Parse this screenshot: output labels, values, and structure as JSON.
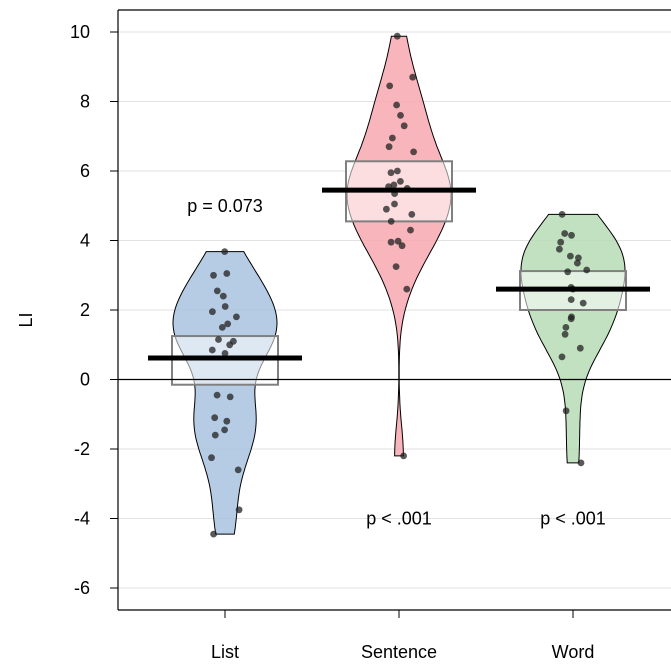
{
  "chart_data": {
    "type": "pirateplot",
    "title": "",
    "xlabel": "",
    "ylabel": "LI",
    "ylim": [
      -6.6,
      10.6
    ],
    "yticks": [
      -6,
      -4,
      -2,
      0,
      2,
      4,
      6,
      8,
      10
    ],
    "ytick_labels": [
      "-6",
      "-4",
      "-2",
      "0",
      "2",
      "4",
      "6",
      "8",
      "10"
    ],
    "reference_line": 0,
    "grid": "horizontal",
    "categories": [
      "List",
      "Sentence",
      "Word"
    ],
    "series": [
      {
        "category": "List",
        "color": "#a9c3e0",
        "mean": 0.62,
        "ci": [
          -0.15,
          1.25
        ],
        "annotation": "p = 0.073",
        "annotation_y": 5.0,
        "density_range": [
          -4.45,
          3.68
        ],
        "points": [
          3.68,
          3.05,
          3.0,
          2.55,
          2.4,
          2.1,
          1.95,
          1.8,
          1.6,
          1.5,
          1.15,
          1.1,
          1.0,
          0.85,
          0.75,
          -0.45,
          -0.5,
          -1.1,
          -1.2,
          -1.45,
          -1.6,
          -2.25,
          -2.6,
          -3.75,
          -4.45
        ]
      },
      {
        "category": "Sentence",
        "color": "#f7a8b0",
        "mean": 5.45,
        "ci": [
          4.55,
          6.28
        ],
        "annotation": "p < .001",
        "annotation_y": -4.0,
        "density_range": [
          -2.2,
          9.88
        ],
        "points": [
          9.88,
          8.7,
          8.45,
          7.9,
          7.6,
          7.3,
          6.95,
          6.7,
          6.55,
          6.0,
          5.95,
          5.7,
          5.6,
          5.55,
          5.5,
          5.35,
          5.05,
          4.9,
          4.75,
          4.55,
          4.3,
          3.98,
          3.95,
          3.85,
          3.25,
          2.6,
          -2.2
        ]
      },
      {
        "category": "Word",
        "color": "#b6dcb6",
        "mean": 2.6,
        "ci": [
          2.0,
          3.12
        ],
        "annotation": "p < .001",
        "annotation_y": -4.0,
        "density_range": [
          -2.4,
          4.75
        ],
        "points": [
          4.75,
          4.2,
          4.15,
          3.95,
          3.75,
          3.55,
          3.5,
          3.35,
          3.15,
          3.1,
          2.65,
          2.6,
          2.3,
          2.2,
          1.8,
          1.75,
          1.5,
          1.3,
          0.9,
          0.65,
          -0.9,
          -2.4
        ]
      }
    ]
  }
}
